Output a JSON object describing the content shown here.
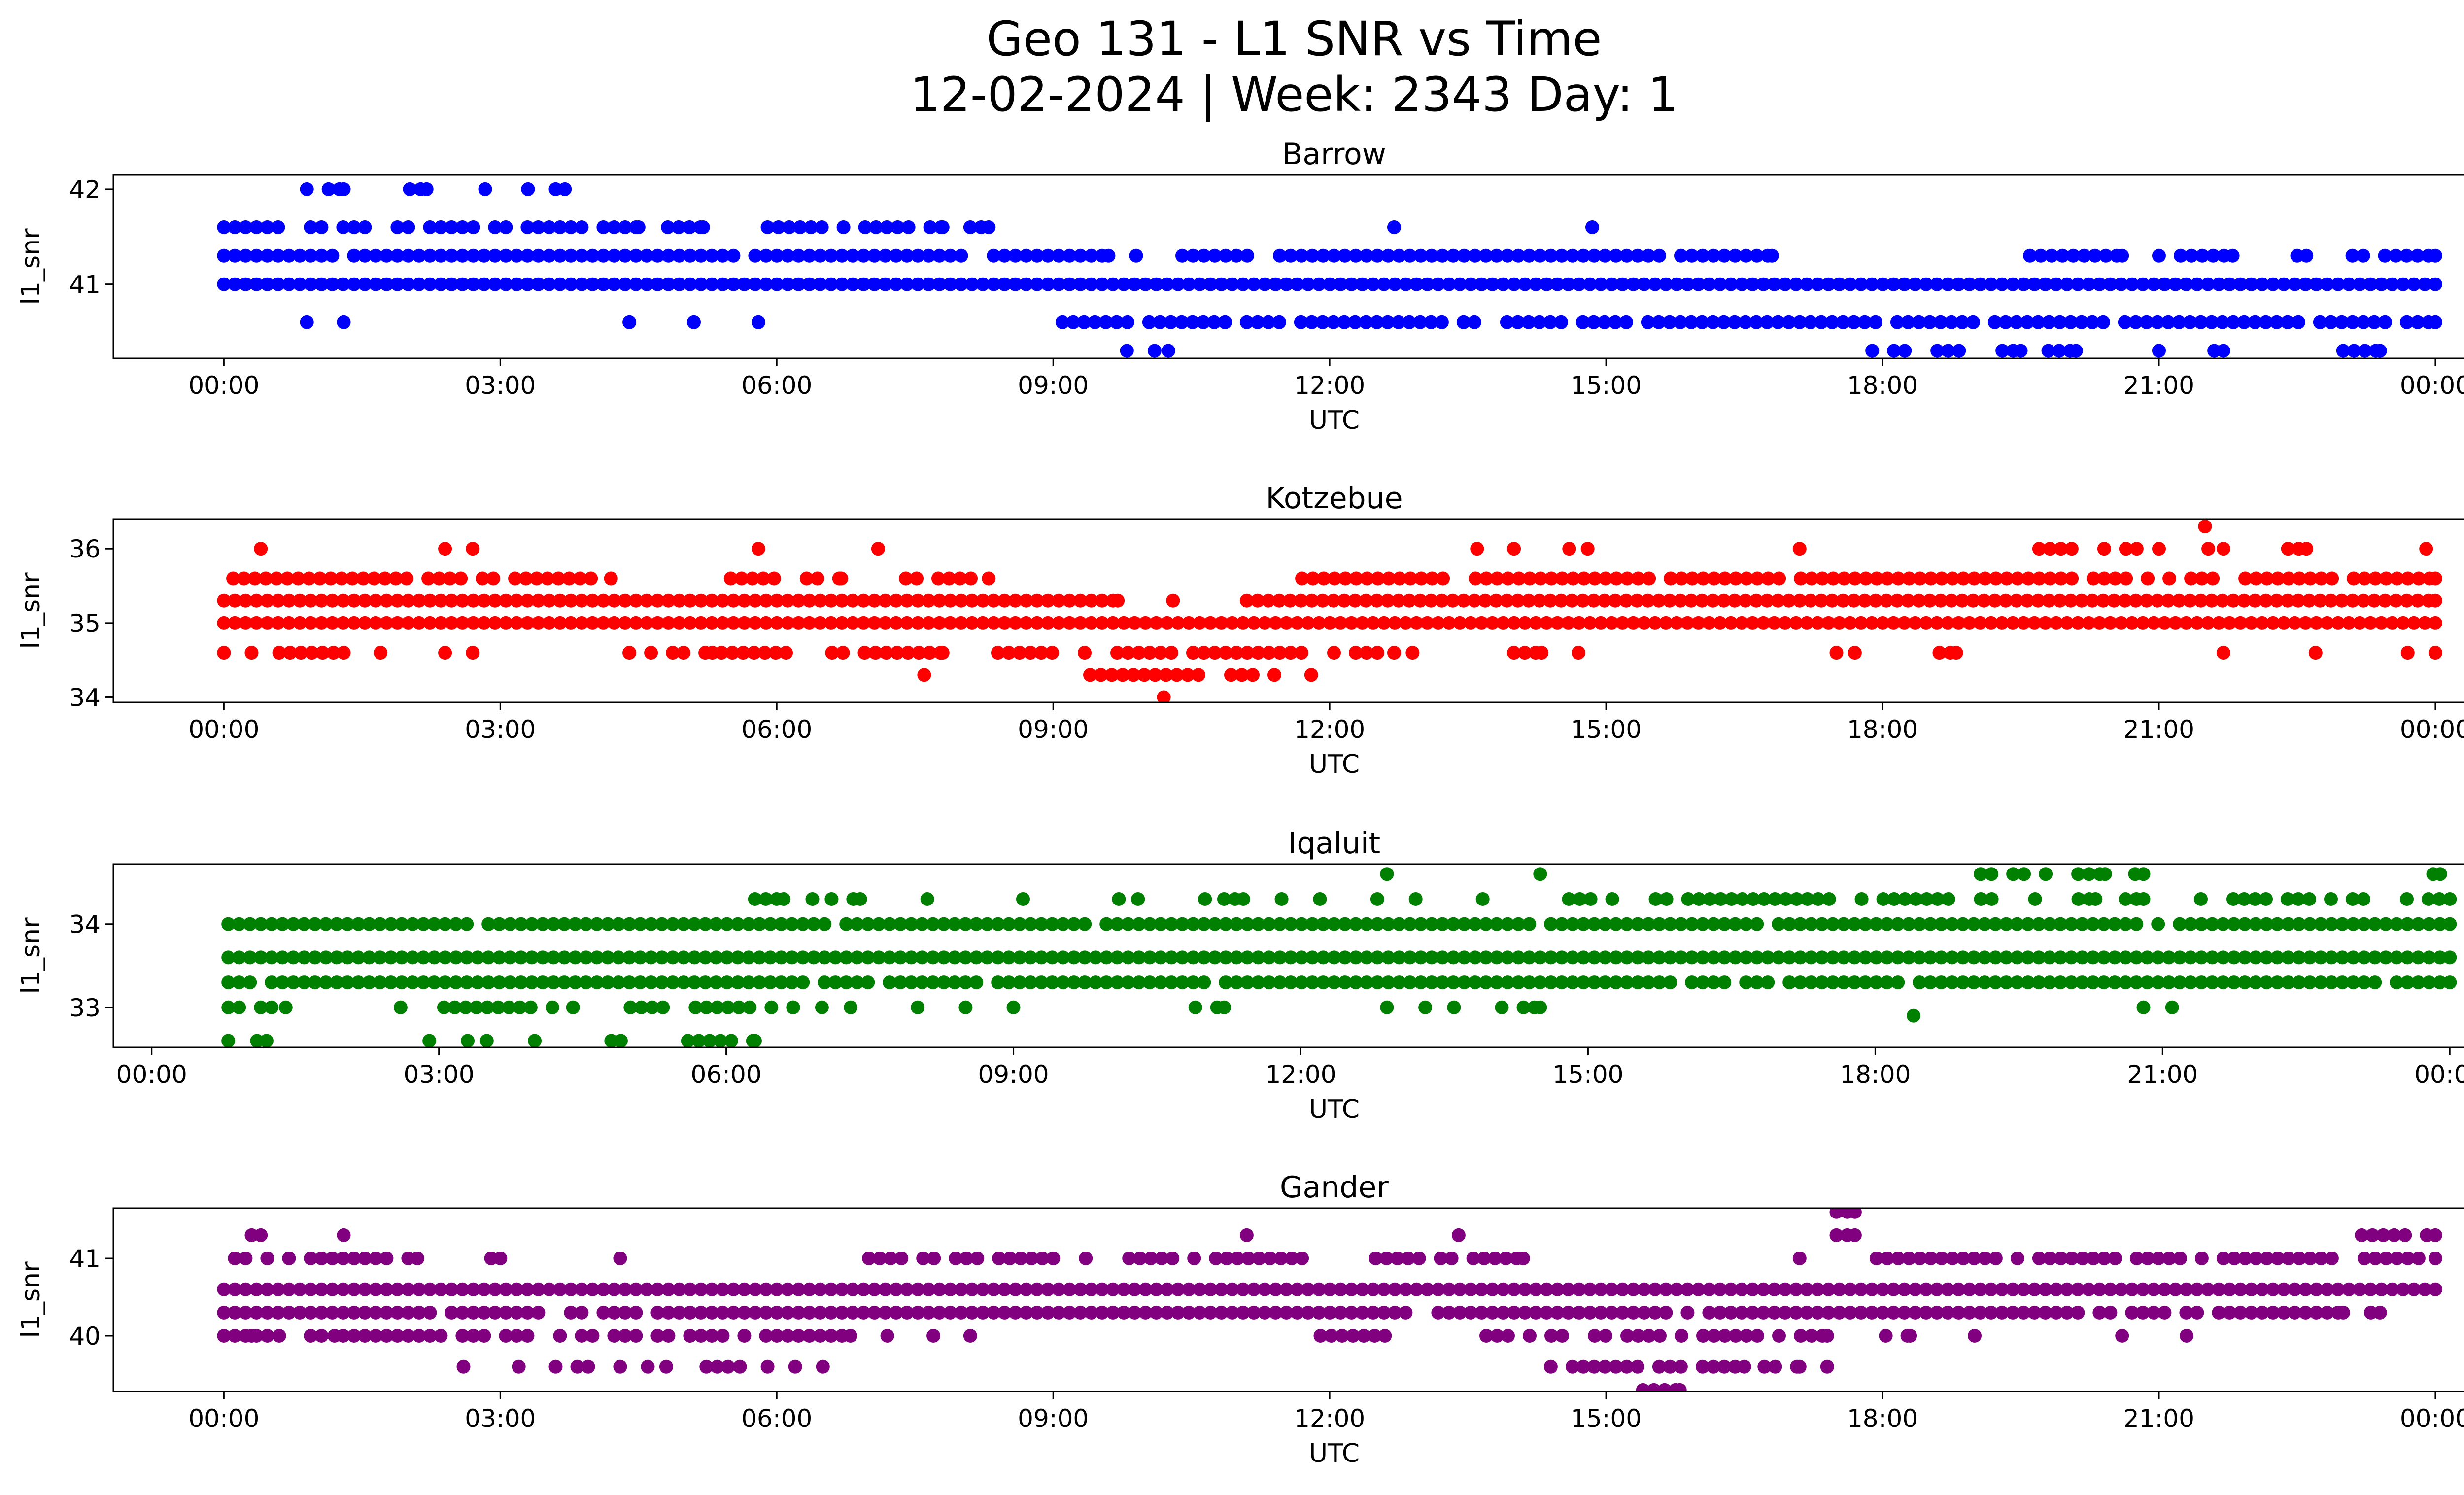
{
  "chart_data": {
    "type": "scatter",
    "title_line1": "Geo 131 - L1 SNR vs Time",
    "title_line2": "12-02-2024 | Week: 2343 Day: 1",
    "x_tick_labels": [
      "00:00",
      "03:00",
      "06:00",
      "09:00",
      "12:00",
      "15:00",
      "18:00",
      "21:00",
      "00:00"
    ],
    "panels": [
      {
        "name": "Barrow",
        "color": "#0000ff",
        "xlabel": "UTC",
        "ylabel": "l1_snr",
        "x_range_hours": [
          -1.2,
          25.3
        ],
        "ylim": [
          40.22,
          42.15
        ],
        "yticks": [
          41,
          42
        ],
        "x_ticks_hours": [
          0,
          3,
          6,
          9,
          12,
          15,
          18,
          21,
          24
        ],
        "levels": [
          {
            "y": 42.0,
            "ranges": [
              [
                0.9,
                1.3
              ],
              [
                1.9,
                2.2
              ],
              [
                2.6,
                3.3
              ],
              [
                3.6,
                3.7
              ]
            ],
            "density": 0.6
          },
          {
            "y": 41.6,
            "ranges": [
              [
                0.0,
                4.5
              ],
              [
                4.7,
                5.2
              ],
              [
                5.9,
                7.8
              ],
              [
                8.1,
                8.3
              ]
            ],
            "density": 0.75,
            "outliers": [
              12.7,
              14.85
            ]
          },
          {
            "y": 41.3,
            "ranges": [
              [
                0.0,
                9.6
              ],
              [
                10.4,
                16.8
              ],
              [
                19.6,
                20.6
              ],
              [
                21.0,
                21.8
              ],
              [
                22.5,
                22.6
              ],
              [
                23.1,
                24.0
              ]
            ],
            "density": 0.95,
            "outliers": [
              9.9
            ]
          },
          {
            "y": 41.0,
            "ranges": [
              [
                0.0,
                24.0
              ]
            ],
            "density": 1.0
          },
          {
            "y": 40.6,
            "ranges": [
              [
                9.1,
                24.0
              ]
            ],
            "density": 0.9,
            "outliers": [
              0.9,
              1.3,
              4.4,
              5.1,
              5.8
            ]
          },
          {
            "y": 40.3,
            "ranges": [
              [
                17.3,
                19.5
              ],
              [
                19.8,
                20.1
              ],
              [
                21.6,
                21.7
              ],
              [
                23.0,
                23.4
              ]
            ],
            "density": 0.7,
            "outliers": [
              9.8,
              10.1,
              10.25,
              21.0
            ]
          }
        ]
      },
      {
        "name": "Kotzebue",
        "color": "#ff0000",
        "xlabel": "UTC",
        "ylabel": "l1_snr",
        "x_range_hours": [
          -1.2,
          25.3
        ],
        "ylim": [
          33.93,
          36.4
        ],
        "yticks": [
          34,
          35,
          36
        ],
        "x_ticks_hours": [
          0,
          3,
          6,
          9,
          12,
          15,
          18,
          21,
          24
        ],
        "levels": [
          {
            "y": 36.3,
            "ranges": [],
            "outliers": [
              21.5
            ]
          },
          {
            "y": 36.0,
            "ranges": [
              [
                19.7,
                21.0
              ],
              [
                21.3,
                21.7
              ],
              [
                22.4,
                22.6
              ]
            ],
            "density": 0.7,
            "outliers": [
              0.4,
              2.4,
              2.7,
              5.8,
              7.1,
              13.6,
              14.0,
              14.6,
              14.8,
              17.1,
              23.9
            ]
          },
          {
            "y": 35.6,
            "ranges": [
              [
                0.1,
                4.2
              ],
              [
                5.5,
                6.7
              ],
              [
                7.4,
                8.3
              ],
              [
                11.7,
                24.0
              ]
            ],
            "density": 0.85
          },
          {
            "y": 35.3,
            "ranges": [
              [
                0.0,
                9.7
              ],
              [
                11.1,
                24.0
              ]
            ],
            "density": 1.0,
            "outliers": [
              10.3
            ]
          },
          {
            "y": 35.0,
            "ranges": [
              [
                0.0,
                24.0
              ]
            ],
            "density": 1.0
          },
          {
            "y": 34.6,
            "ranges": [
              [
                0.0,
                0.3
              ],
              [
                0.6,
                1.3
              ],
              [
                4.4,
                5.3
              ],
              [
                5.4,
                6.1
              ],
              [
                6.6,
                7.8
              ],
              [
                8.4,
                12.7
              ],
              [
                14.0,
                14.3
              ],
              [
                18.5,
                18.8
              ]
            ],
            "density": 0.8,
            "outliers": [
              1.7,
              2.4,
              2.7,
              12.9,
              14.7,
              17.5,
              17.7,
              21.7,
              22.7,
              23.7,
              24.0
            ]
          },
          {
            "y": 34.3,
            "ranges": [
              [
                9.4,
                11.4
              ]
            ],
            "density": 0.8,
            "outliers": [
              7.6,
              11.8
            ]
          },
          {
            "y": 34.0,
            "ranges": [],
            "outliers": [
              10.2
            ]
          }
        ]
      },
      {
        "name": "Iqaluit",
        "color": "#008000",
        "xlabel": "UTC",
        "ylabel": "l1_snr",
        "x_range_hours": [
          -0.4,
          25.1
        ],
        "ylim": [
          32.52,
          34.72
        ],
        "yticks": [
          33,
          34
        ],
        "x_ticks_hours": [
          0,
          3,
          6,
          9,
          12,
          15,
          18,
          21,
          24
        ],
        "levels": [
          {
            "y": 34.6,
            "ranges": [
              [
                19.1,
                20.4
              ],
              [
                20.6,
                20.8
              ],
              [
                23.6,
                23.9
              ]
            ],
            "density": 0.5,
            "outliers": [
              12.9,
              14.5
            ]
          },
          {
            "y": 34.3,
            "ranges": [
              [
                6.3,
                6.6
              ],
              [
                7.1,
                7.4
              ],
              [
                11.2,
                11.4
              ],
              [
                14.8,
                20.3
              ],
              [
                20.5,
                20.8
              ],
              [
                21.4,
                24.0
              ]
            ],
            "density": 0.7,
            "outliers": [
              6.9,
              8.1,
              9.1,
              10.1,
              10.3,
              11.0,
              11.8,
              12.2,
              12.8,
              13.2,
              13.9
            ]
          },
          {
            "y": 34.0,
            "ranges": [
              [
                0.8,
                24.0
              ]
            ],
            "density": 0.95
          },
          {
            "y": 33.6,
            "ranges": [
              [
                0.8,
                24.0
              ]
            ],
            "density": 1.0
          },
          {
            "y": 33.3,
            "ranges": [
              [
                0.8,
                24.0
              ]
            ],
            "density": 0.95
          },
          {
            "y": 33.0,
            "ranges": [
              [
                0.8,
                1.4
              ],
              [
                2.6,
                4.4
              ],
              [
                5.0,
                6.7
              ],
              [
                10.9,
                11.2
              ],
              [
                14.1,
                14.5
              ]
            ],
            "density": 0.8,
            "outliers": [
              7.0,
              7.3,
              8.0,
              8.5,
              9.0,
              12.9,
              13.3,
              13.6,
              20.8,
              21.1
            ]
          },
          {
            "y": 32.9,
            "ranges": [],
            "outliers": [
              18.4
            ]
          },
          {
            "y": 32.6,
            "ranges": [
              [
                5.6,
                6.3
              ]
            ],
            "density": 0.7,
            "outliers": [
              0.8,
              1.1,
              1.2,
              2.9,
              3.3,
              3.5,
              4.0,
              4.8,
              4.9
            ]
          }
        ]
      },
      {
        "name": "Gander",
        "color": "#800080",
        "xlabel": "UTC",
        "ylabel": "l1_snr",
        "x_range_hours": [
          -1.2,
          25.3
        ],
        "ylim": [
          39.28,
          41.65
        ],
        "yticks": [
          40,
          41
        ],
        "x_ticks_hours": [
          0,
          3,
          6,
          9,
          12,
          15,
          18,
          21,
          24
        ],
        "levels": [
          {
            "y": 41.6,
            "ranges": [
              [
                17.5,
                17.7
              ]
            ],
            "density": 0.8
          },
          {
            "y": 41.3,
            "ranges": [
              [
                0.3,
                0.4
              ],
              [
                17.5,
                17.7
              ],
              [
                23.2,
                24.0
              ]
            ],
            "density": 0.8,
            "outliers": [
              1.3,
              11.1,
              13.4
            ]
          },
          {
            "y": 41.0,
            "ranges": [
              [
                0.0,
                2.1
              ],
              [
                7.0,
                11.7
              ],
              [
                12.5,
                14.1
              ],
              [
                17.7,
                24.0
              ]
            ],
            "density": 0.8,
            "outliers": [
              2.9,
              3.0,
              4.3,
              17.1
            ]
          },
          {
            "y": 40.6,
            "ranges": [
              [
                0.0,
                24.0
              ]
            ],
            "density": 1.0
          },
          {
            "y": 40.3,
            "ranges": [
              [
                0.0,
                23.0
              ]
            ],
            "density": 0.95,
            "outliers": [
              23.3,
              23.4
            ]
          },
          {
            "y": 40.0,
            "ranges": [
              [
                0.0,
                6.8
              ],
              [
                11.9,
                12.6
              ],
              [
                13.7,
                17.4
              ],
              [
                17.8,
                18.3
              ]
            ],
            "density": 0.8,
            "outliers": [
              0.3,
              0.6,
              1.2,
              7.2,
              7.7,
              8.1,
              19.0,
              20.6,
              21.3
            ]
          },
          {
            "y": 39.6,
            "ranges": [
              [
                3.6,
                4.3
              ],
              [
                5.0,
                5.6
              ],
              [
                14.4,
                16.5
              ],
              [
                16.6,
                17.1
              ]
            ],
            "density": 0.8,
            "outliers": [
              2.6,
              3.2,
              4.6,
              4.8,
              5.9,
              6.2,
              6.5,
              17.4
            ]
          },
          {
            "y": 39.3,
            "ranges": [
              [
                15.4,
                15.8
              ]
            ],
            "density": 0.6
          }
        ]
      }
    ]
  }
}
